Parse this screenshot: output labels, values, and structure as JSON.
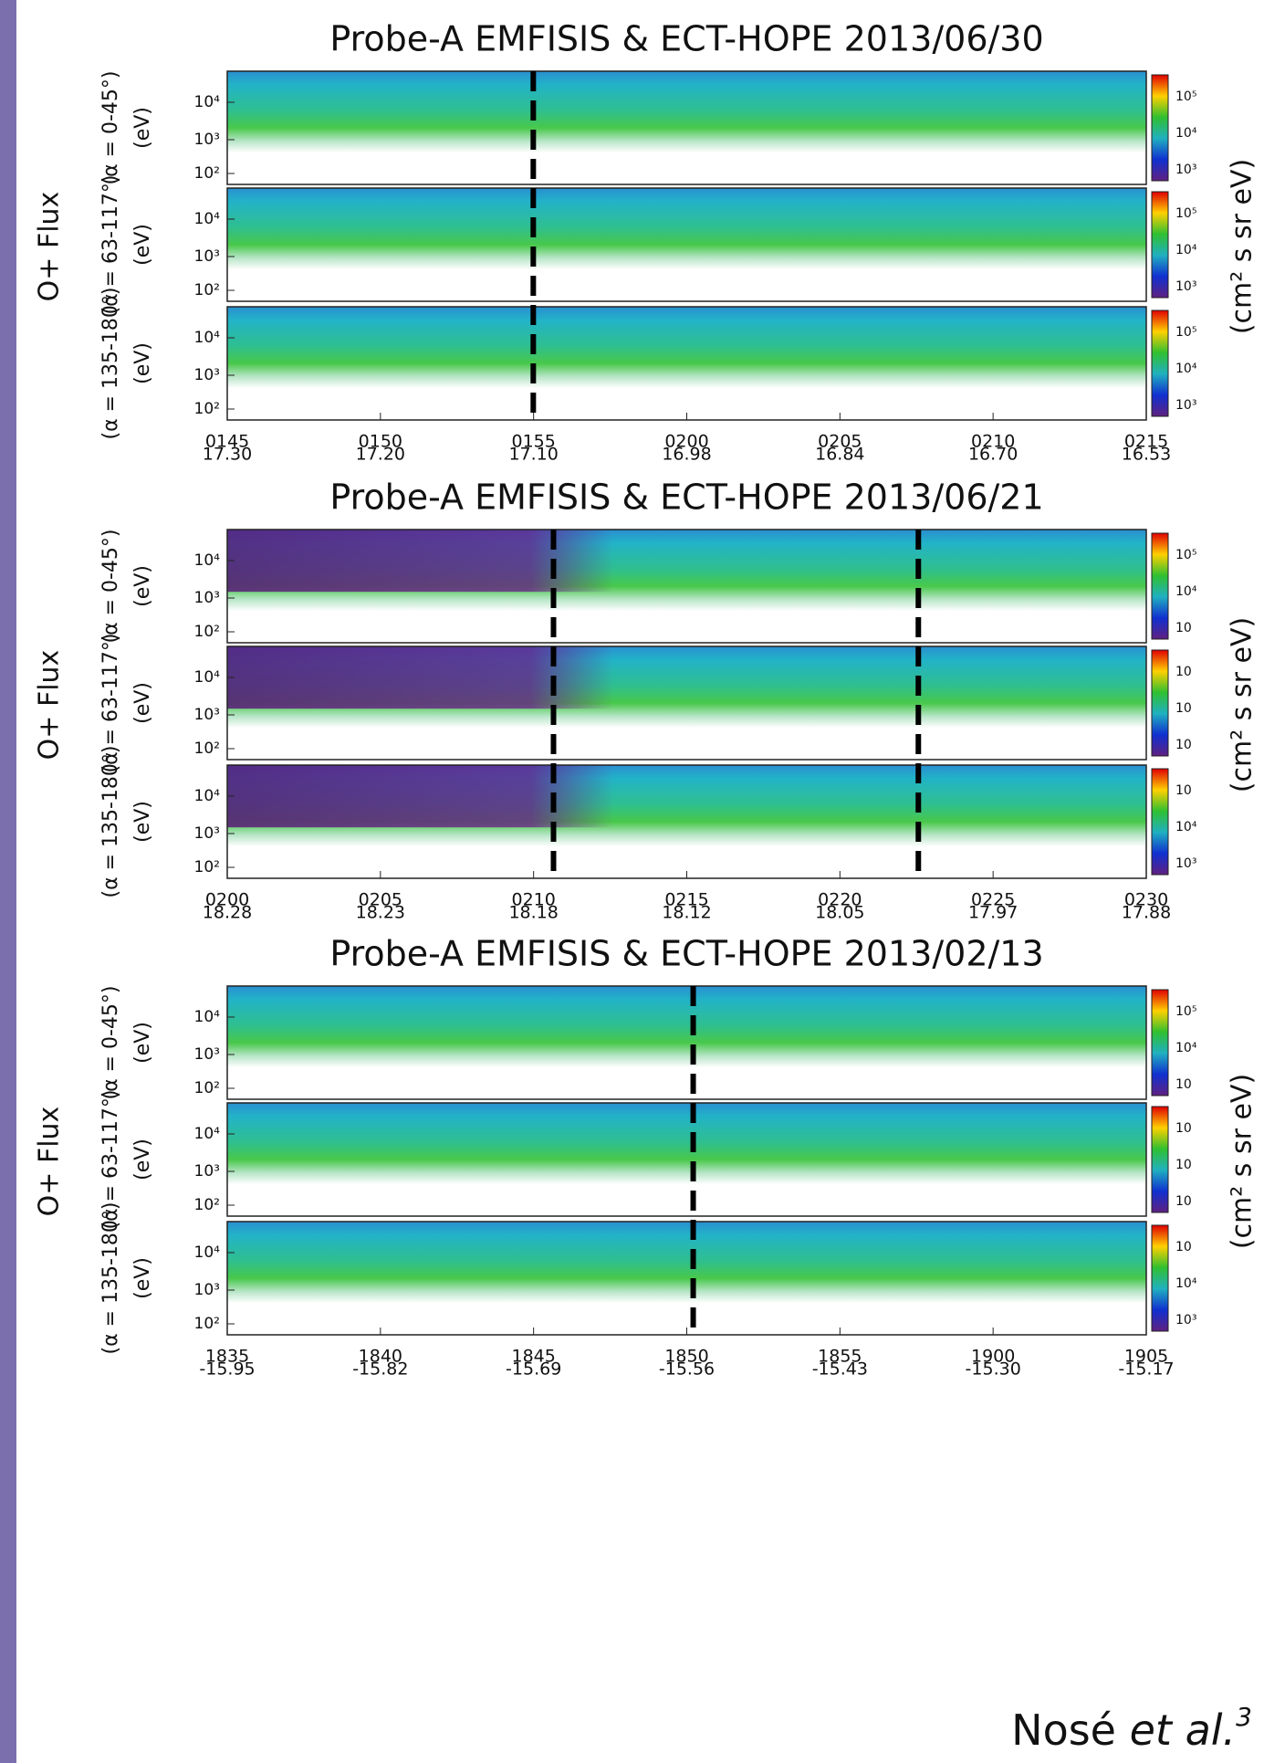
{
  "figures": [
    {
      "title": "Probe-A EMFISIS & ECT-HOPE 2013/06/30",
      "ylabel": "O+ Flux",
      "colorbar_unit": "(cm² s sr eV)",
      "panels": [
        {
          "pitch_angle": "(α = 0-45°)",
          "unit": "(eV)",
          "yticks": [
            "10⁴",
            "10³",
            "10²"
          ],
          "colorbar_ticks": [
            "10⁵",
            "10⁴",
            "10³"
          ]
        },
        {
          "pitch_angle": "(α = 63-117°)",
          "unit": "(eV)",
          "yticks": [
            "10⁴",
            "10³",
            "10²"
          ],
          "colorbar_ticks": [
            "10⁵",
            "10⁴",
            "10³"
          ]
        },
        {
          "pitch_angle": "(α = 135-180°)",
          "unit": "(eV)",
          "yticks": [
            "10⁴",
            "10³",
            "10²"
          ],
          "colorbar_ticks": [
            "10⁵",
            "10⁴",
            "10³"
          ]
        }
      ],
      "xticks": [
        {
          "time": "0145",
          "lat": "17.30"
        },
        {
          "time": "0150",
          "lat": "17.20"
        },
        {
          "time": "0155",
          "lat": "17.10"
        },
        {
          "time": "0200",
          "lat": "16.98"
        },
        {
          "time": "0205",
          "lat": "16.84"
        },
        {
          "time": "0210",
          "lat": "16.70"
        },
        {
          "time": "0215",
          "lat": "16.53"
        }
      ]
    },
    {
      "title": "Probe-A EMFISIS & ECT-HOPE 2013/06/21",
      "ylabel": "O+ Flux",
      "colorbar_unit": "(cm² s sr eV)",
      "panels": [
        {
          "pitch_angle": "(α = 0-45°)",
          "unit": "(eV)",
          "yticks": [
            "10⁴",
            "10³",
            "10²"
          ],
          "colorbar_ticks": [
            "10⁵",
            "10⁴",
            "10"
          ]
        },
        {
          "pitch_angle": "(α = 63-117°)",
          "unit": "(eV)",
          "yticks": [
            "10⁴",
            "10³",
            "10²"
          ],
          "colorbar_ticks": [
            "10",
            "10",
            "10"
          ]
        },
        {
          "pitch_angle": "(α = 135-180°)",
          "unit": "(eV)",
          "yticks": [
            "10⁴",
            "10³",
            "10²"
          ],
          "colorbar_ticks": [
            "10",
            "10⁴",
            "10³"
          ]
        }
      ],
      "xticks": [
        {
          "time": "0200",
          "lat": "18.28"
        },
        {
          "time": "0205",
          "lat": "18.23"
        },
        {
          "time": "0210",
          "lat": "18.18"
        },
        {
          "time": "0215",
          "lat": "18.12"
        },
        {
          "time": "0220",
          "lat": "18.05"
        },
        {
          "time": "0225",
          "lat": "17.97"
        },
        {
          "time": "0230",
          "lat": "17.88"
        }
      ]
    },
    {
      "title": "Probe-A EMFISIS & ECT-HOPE 2013/02/13",
      "ylabel": "O+ Flux",
      "colorbar_unit": "(cm² s sr eV)",
      "panels": [
        {
          "pitch_angle": "(α = 0-45°)",
          "unit": "(eV)",
          "yticks": [
            "10⁴",
            "10³",
            "10²"
          ],
          "colorbar_ticks": [
            "10⁵",
            "10⁴",
            "10"
          ]
        },
        {
          "pitch_angle": "(α = 63-117°)",
          "unit": "(eV)",
          "yticks": [
            "10⁴",
            "10³",
            "10²"
          ],
          "colorbar_ticks": [
            "10",
            "10",
            "10"
          ]
        },
        {
          "pitch_angle": "(α = 135-180°)",
          "unit": "(eV)",
          "yticks": [
            "10⁴",
            "10³",
            "10²"
          ],
          "colorbar_ticks": [
            "10",
            "10⁴",
            "10³"
          ]
        }
      ],
      "xticks": [
        {
          "time": "1835",
          "lat": "-15.95"
        },
        {
          "time": "1840",
          "lat": "-15.82"
        },
        {
          "time": "1845",
          "lat": "-15.69"
        },
        {
          "time": "1850",
          "lat": "-15.56"
        },
        {
          "time": "1855",
          "lat": "-15.43"
        },
        {
          "time": "1900",
          "lat": "-15.30"
        },
        {
          "time": "1905",
          "lat": "-15.17"
        }
      ]
    }
  ],
  "footer": {
    "author": "Nosé",
    "etal": "et al.",
    "ref": "3"
  }
}
